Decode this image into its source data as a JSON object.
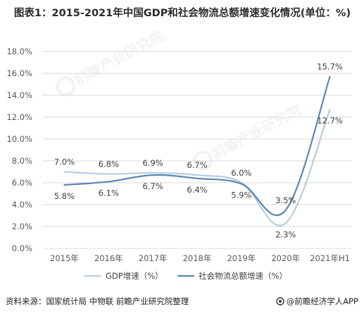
{
  "title": "图表1：2015-2021年中国GDP和社会物流总额增速变化情况(单位：%)",
  "footer": {
    "source": "资料来源：国家统计局 中物联 前瞻产业研究院整理",
    "brand": "@前瞻经济学人APP"
  },
  "watermark": "前瞻产业研究院",
  "colors": {
    "gdp": "#b7cde3",
    "logistics": "#5b86b5",
    "grid": "#d9d9d9",
    "tick_text": "#595959"
  },
  "chart_data": {
    "type": "line",
    "categories": [
      "2015年",
      "2016年",
      "2017年",
      "2018年",
      "2019年",
      "2020年",
      "2021年H1"
    ],
    "series": [
      {
        "name": "GDP增速（%）",
        "values": [
          7.0,
          6.8,
          6.9,
          6.7,
          6.0,
          2.3,
          12.7
        ],
        "labels": [
          "7.0%",
          "6.8%",
          "6.9%",
          "6.7%",
          "6.0%",
          "2.3%",
          "12.7%"
        ]
      },
      {
        "name": "社会物流总额增速（%）",
        "values": [
          5.8,
          6.1,
          6.7,
          6.4,
          5.9,
          3.5,
          15.7
        ],
        "labels": [
          "5.8%",
          "6.1%",
          "6.7%",
          "6.4%",
          "5.9%",
          "3.5%",
          "15.7%"
        ]
      }
    ],
    "yticks": [
      "0.0%",
      "2.0%",
      "4.0%",
      "6.0%",
      "8.0%",
      "10.0%",
      "12.0%",
      "14.0%",
      "16.0%",
      "18.0%"
    ],
    "ylim": [
      0,
      18
    ],
    "ystep": 2,
    "grid": true,
    "legend_position": "bottom",
    "smooth": true
  }
}
